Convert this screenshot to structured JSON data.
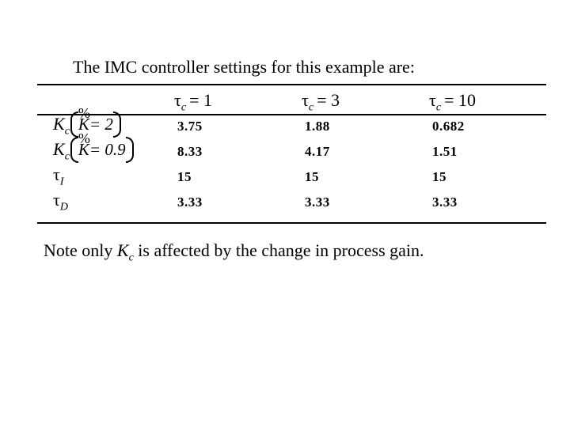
{
  "title": "The IMC controller settings for this example are:",
  "table": {
    "header": [
      {
        "symbol": "τ",
        "sub": "c",
        "rest": "= 1"
      },
      {
        "symbol": "τ",
        "sub": "c",
        "rest": "= 3"
      },
      {
        "symbol": "τ",
        "sub": "c",
        "rest": "= 10"
      }
    ],
    "rows": [
      {
        "label": {
          "symbol": "K",
          "sub": "c",
          "mark": "%",
          "arg": "K= 2"
        },
        "values": [
          3.75,
          1.88,
          0.682
        ]
      },
      {
        "label": {
          "symbol": "K",
          "sub": "c",
          "mark": "%",
          "arg": "K= 0.9"
        },
        "values": [
          8.33,
          4.17,
          1.51
        ]
      },
      {
        "label": {
          "symbol": "τ",
          "sub": "I"
        },
        "values": [
          15,
          15,
          15
        ]
      },
      {
        "label": {
          "symbol": "τ",
          "sub": "D"
        },
        "values": [
          3.33,
          3.33,
          3.33
        ]
      }
    ]
  },
  "note": {
    "before": "Note only ",
    "symbol": "K",
    "sub": "c",
    "after": " is affected by the change in process gain."
  }
}
